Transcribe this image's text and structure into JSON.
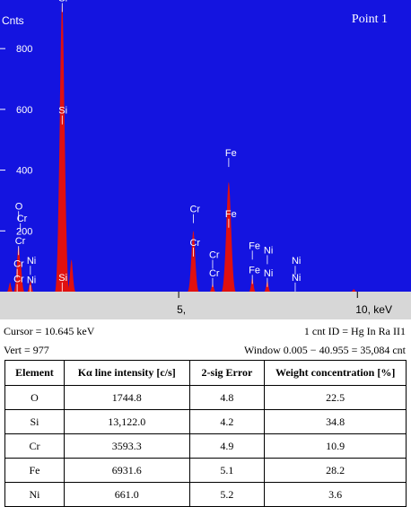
{
  "chart_data": {
    "type": "area",
    "panel_title": "Point 1",
    "ylabel": "Cnts",
    "xlabel": "keV",
    "x_unit_suffix": ", keV",
    "ylim": [
      0,
      960
    ],
    "xlim": [
      0,
      11.5
    ],
    "yticks": [
      200,
      400,
      600,
      800
    ],
    "xticks": [
      {
        "value": 5,
        "label": "5,"
      },
      {
        "value": 10,
        "label": "10, keV"
      }
    ],
    "colors": {
      "background": "#1414e0",
      "spectrum": "#e01010",
      "text": "#ffffff",
      "axis_bar": "#d7d7d7"
    },
    "series": [
      {
        "peaks": [
          {
            "x": 0.28,
            "y": 30
          },
          {
            "x": 0.52,
            "y": 150
          },
          {
            "x": 0.57,
            "y": 100
          },
          {
            "x": 0.85,
            "y": 35
          },
          {
            "x": 1.74,
            "y": 950
          },
          {
            "x": 1.84,
            "y": 60
          },
          {
            "x": 2.0,
            "y": 105
          },
          {
            "x": 5.41,
            "y": 200
          },
          {
            "x": 5.95,
            "y": 25
          },
          {
            "x": 6.4,
            "y": 360
          },
          {
            "x": 7.06,
            "y": 45
          },
          {
            "x": 7.48,
            "y": 35
          },
          {
            "x": 9.9,
            "y": 8
          }
        ]
      }
    ],
    "annotations": [
      {
        "text": "Si",
        "x": 1.74,
        "y": 950
      },
      {
        "text": "Si",
        "x": 1.74,
        "y": 580
      },
      {
        "text": "Si",
        "x": 1.74,
        "y": 30
      },
      {
        "text": "O",
        "x": 0.52,
        "y": 265
      },
      {
        "text": "Cr",
        "x": 0.57,
        "y": 225
      },
      {
        "text": "Cr",
        "x": 0.52,
        "y": 150
      },
      {
        "text": "Cr",
        "x": 0.48,
        "y": 75
      },
      {
        "text": "Cr",
        "x": 0.48,
        "y": 25
      },
      {
        "text": "Ni",
        "x": 0.85,
        "y": 85
      },
      {
        "text": "Ni",
        "x": 0.85,
        "y": 22
      },
      {
        "text": "Cr",
        "x": 5.41,
        "y": 255
      },
      {
        "text": "Cr",
        "x": 5.41,
        "y": 145
      },
      {
        "text": "Cr",
        "x": 5.95,
        "y": 105
      },
      {
        "text": "Cr",
        "x": 5.95,
        "y": 45
      },
      {
        "text": "Fe",
        "x": 6.4,
        "y": 440
      },
      {
        "text": "Fe",
        "x": 6.4,
        "y": 240
      },
      {
        "text": "Fe",
        "x": 7.06,
        "y": 135
      },
      {
        "text": "Fe",
        "x": 7.06,
        "y": 55
      },
      {
        "text": "Ni",
        "x": 7.48,
        "y": 120
      },
      {
        "text": "Ni",
        "x": 7.48,
        "y": 45
      },
      {
        "text": "Ni",
        "x": 8.26,
        "y": 85
      },
      {
        "text": "Ni",
        "x": 8.26,
        "y": 30
      }
    ]
  },
  "status": {
    "cursor": "Cursor = 10.645 keV",
    "cnt_id": "1 cnt ID = Hg In Ra II1",
    "vert": "Vert = 977",
    "window": "Window 0.005 − 40.955 = 35,084 cnt"
  },
  "table": {
    "headers": [
      "Element",
      "Kα line intensity [c/s]",
      "2-sig Error",
      "Weight concentration [%]"
    ],
    "rows": [
      [
        "O",
        "1744.8",
        "4.8",
        "22.5"
      ],
      [
        "Si",
        "13,122.0",
        "4.2",
        "34.8"
      ],
      [
        "Cr",
        "3593.3",
        "4.9",
        "10.9"
      ],
      [
        "Fe",
        "6931.6",
        "5.1",
        "28.2"
      ],
      [
        "Ni",
        "661.0",
        "5.2",
        "3.6"
      ]
    ]
  }
}
